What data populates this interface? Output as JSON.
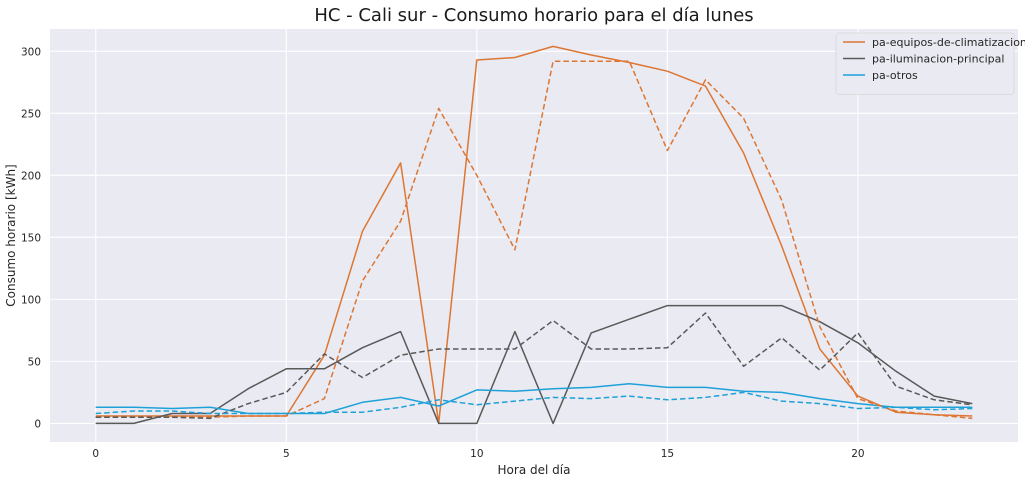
{
  "chart_data": {
    "type": "line",
    "title": "HC - Cali sur - Consumo horario para el día lunes",
    "xlabel": "Hora del día",
    "ylabel": "Consumo horario [kWh]",
    "xlim": [
      -1.2,
      24.2
    ],
    "ylim": [
      -15,
      318
    ],
    "xticks": [
      0,
      5,
      10,
      15,
      20
    ],
    "yticks": [
      0,
      50,
      100,
      150,
      200,
      250,
      300
    ],
    "grid": true,
    "legend_position": "top-right",
    "x": [
      0,
      1,
      2,
      3,
      4,
      5,
      6,
      7,
      8,
      9,
      10,
      11,
      12,
      13,
      14,
      15,
      16,
      17,
      18,
      19,
      20,
      21,
      22,
      23
    ],
    "series": [
      {
        "name": "pa-equipos-de-climatizacion",
        "color": "#dd7633",
        "style": "solid",
        "legend": true,
        "values": [
          6,
          6,
          6,
          6,
          6,
          6,
          55,
          155,
          210,
          0,
          293,
          295,
          304,
          297,
          291,
          284,
          272,
          218,
          143,
          60,
          22,
          9,
          7,
          6
        ]
      },
      {
        "name": "pa-iluminacion-principal",
        "color": "#595959",
        "style": "solid",
        "legend": true,
        "values": [
          0,
          0,
          8,
          8,
          28,
          44,
          44,
          61,
          74,
          0,
          0,
          74,
          0,
          73,
          84,
          95,
          95,
          95,
          95,
          82,
          65,
          42,
          22,
          16
        ]
      },
      {
        "name": "pa-otros",
        "color": "#1ea1d9",
        "style": "solid",
        "legend": true,
        "values": [
          13,
          13,
          12,
          13,
          8,
          8,
          8,
          17,
          21,
          14,
          27,
          26,
          28,
          29,
          32,
          29,
          29,
          26,
          25,
          20,
          16,
          13,
          13,
          13
        ]
      },
      {
        "color": "#dd7633",
        "style": "dashed",
        "legend": false,
        "values": [
          5,
          5,
          5,
          5,
          6,
          6,
          20,
          115,
          163,
          254,
          200,
          140,
          292,
          292,
          292,
          220,
          277,
          246,
          180,
          78,
          20,
          10,
          7,
          4
        ]
      },
      {
        "color": "#595959",
        "style": "dashed",
        "legend": false,
        "values": [
          5,
          5,
          5,
          4,
          16,
          25,
          56,
          37,
          55,
          60,
          60,
          60,
          83,
          60,
          60,
          61,
          89,
          46,
          69,
          43,
          73,
          30,
          19,
          15
        ]
      },
      {
        "color": "#1ea1d9",
        "style": "dashed",
        "legend": false,
        "values": [
          8,
          10,
          10,
          8,
          8,
          8,
          9,
          9,
          13,
          19,
          15,
          18,
          21,
          20,
          22,
          19,
          21,
          25,
          18,
          16,
          12,
          13,
          11,
          12
        ]
      }
    ]
  }
}
